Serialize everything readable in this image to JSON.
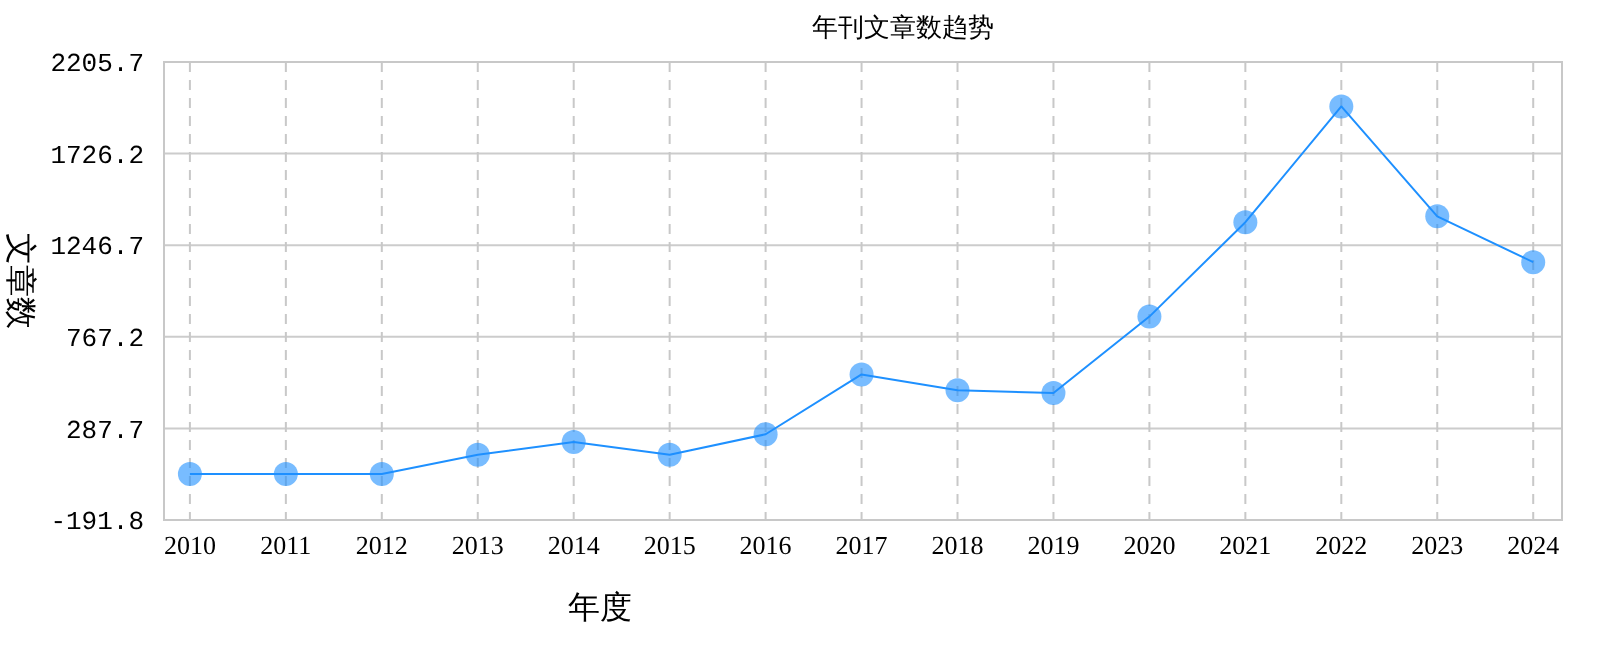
{
  "chart_data": {
    "type": "line",
    "title": "年刊文章数趋势",
    "xlabel": "年度",
    "ylabel": "文章数",
    "categories": [
      "2010",
      "2011",
      "2012",
      "2013",
      "2014",
      "2015",
      "2016",
      "2017",
      "2018",
      "2019",
      "2020",
      "2021",
      "2022",
      "2023",
      "2024"
    ],
    "series": [
      {
        "color": "#1e90ff",
        "values": [
          49,
          49,
          49,
          150,
          216,
          150,
          257,
          570,
          487,
          473,
          873,
          1367,
          1973,
          1398,
          1158
        ]
      }
    ],
    "ylim": [
      -191.8,
      2205.7
    ],
    "yticks": [
      -191.8,
      287.7,
      767.2,
      1246.7,
      1726.2,
      2205.7
    ],
    "grid": true,
    "marker": "circle",
    "line_style": "solid"
  }
}
